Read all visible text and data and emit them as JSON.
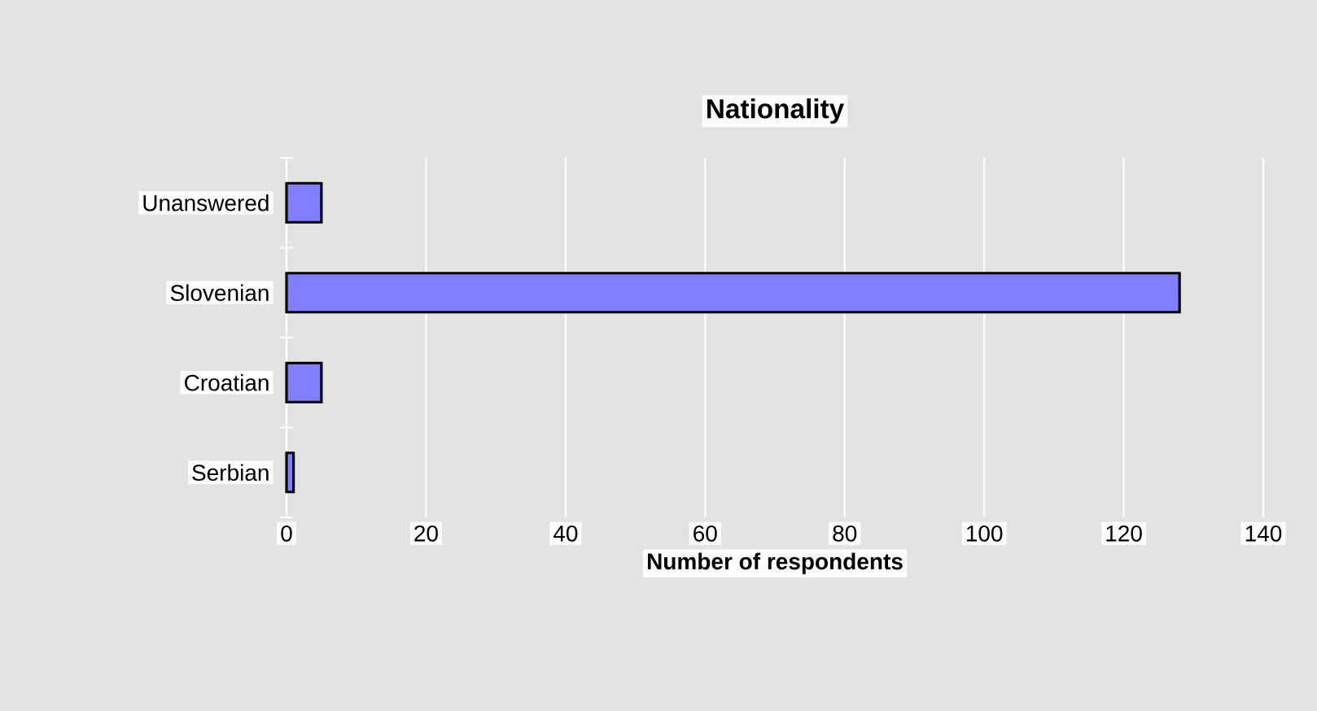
{
  "chart_data": {
    "type": "bar",
    "orientation": "horizontal",
    "title": "Nationality",
    "xlabel": "Number of respondents",
    "categories": [
      "Unanswered",
      "Slovenian",
      "Croatian",
      "Serbian"
    ],
    "values": [
      5,
      128,
      5,
      1
    ],
    "color": "#8080ff",
    "xlim": [
      0,
      140
    ],
    "xticks": [
      0,
      20,
      40,
      60,
      80,
      100,
      120,
      140
    ],
    "grid": "x"
  }
}
